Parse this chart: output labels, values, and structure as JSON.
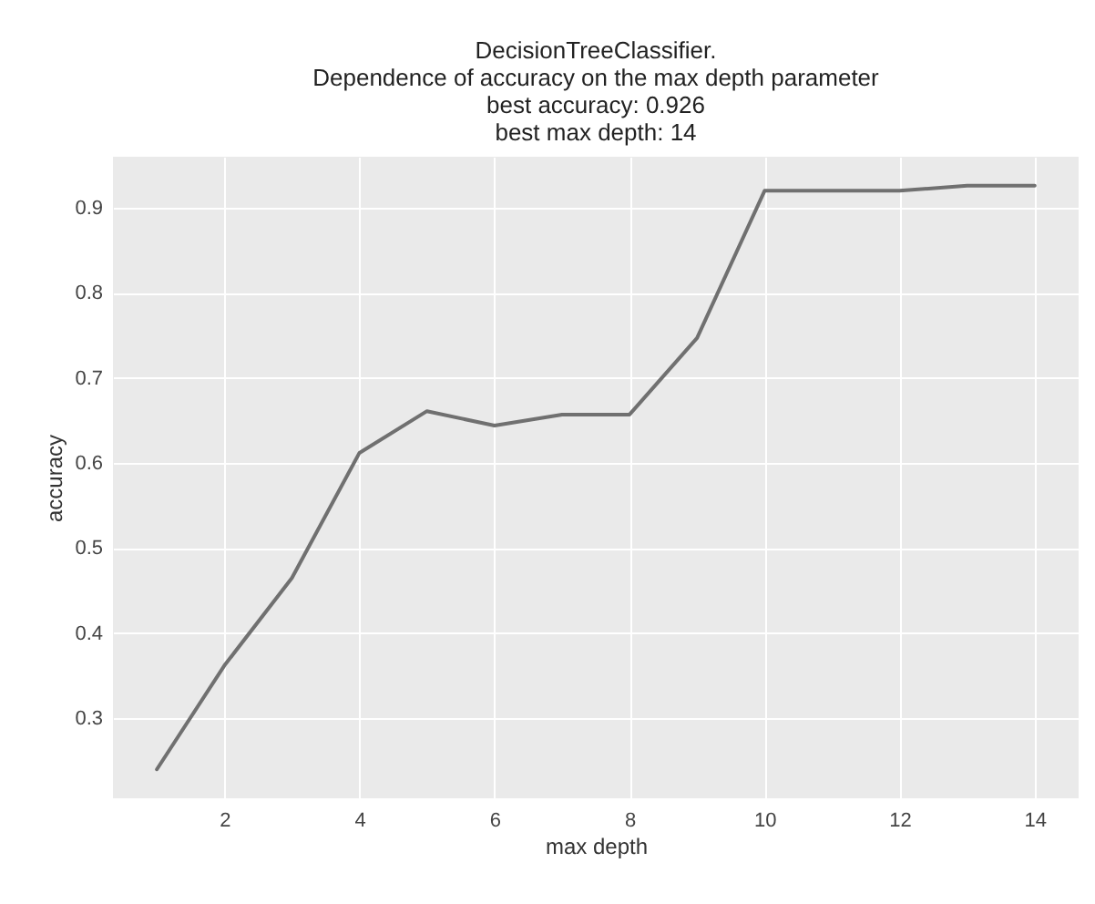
{
  "chart_data": {
    "type": "line",
    "title": "DecisionTreeClassifier.\nDependence of accuracy on the max depth parameter\nbest accuracy: 0.926\nbest max depth: 14",
    "xlabel": "max depth",
    "ylabel": "accuracy",
    "x": [
      1,
      2,
      3,
      4,
      5,
      6,
      7,
      8,
      9,
      10,
      11,
      12,
      13,
      14
    ],
    "series": [
      {
        "color": "#707070",
        "values": [
          0.24,
          0.362,
          0.465,
          0.612,
          0.661,
          0.644,
          0.657,
          0.657,
          0.747,
          0.92,
          0.92,
          0.92,
          0.926,
          0.926
        ]
      }
    ],
    "xlim": [
      0.35,
      14.65
    ],
    "xticks": [
      2,
      4,
      6,
      8,
      10,
      12,
      14
    ],
    "ylim": [
      0.206,
      0.96
    ],
    "yticks": [
      0.3,
      0.4,
      0.5,
      0.6,
      0.7,
      0.8,
      0.9
    ],
    "grid": true,
    "marker": "none",
    "line_style": "solid"
  }
}
